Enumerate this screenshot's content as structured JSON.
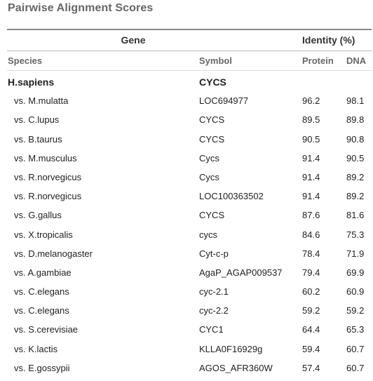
{
  "title": "Pairwise Alignment Scores",
  "header": {
    "gene": "Gene",
    "identity": "Identity (%)"
  },
  "columns": {
    "species": "Species",
    "symbol": "Symbol",
    "protein": "Protein",
    "dna": "DNA"
  },
  "reference": {
    "species": "H.sapiens",
    "symbol": "CYCS"
  },
  "rows": [
    {
      "species": "vs. M.mulatta",
      "symbol": "LOC694977",
      "protein": "96.2",
      "dna": "98.1"
    },
    {
      "species": "vs. C.lupus",
      "symbol": "CYCS",
      "protein": "89.5",
      "dna": "89.8"
    },
    {
      "species": "vs. B.taurus",
      "symbol": "CYCS",
      "protein": "90.5",
      "dna": "90.8"
    },
    {
      "species": "vs. M.musculus",
      "symbol": "Cycs",
      "protein": "91.4",
      "dna": "90.5"
    },
    {
      "species": "vs. R.norvegicus",
      "symbol": "Cycs",
      "protein": "91.4",
      "dna": "89.2"
    },
    {
      "species": "vs. R.norvegicus",
      "symbol": "LOC100363502",
      "protein": "91.4",
      "dna": "89.2"
    },
    {
      "species": "vs. G.gallus",
      "symbol": "CYCS",
      "protein": "87.6",
      "dna": "81.6"
    },
    {
      "species": "vs. X.tropicalis",
      "symbol": "cycs",
      "protein": "84.6",
      "dna": "75.3"
    },
    {
      "species": "vs. D.melanogaster",
      "symbol": "Cyt-c-p",
      "protein": "78.4",
      "dna": "71.9"
    },
    {
      "species": "vs. A.gambiae",
      "symbol": "AgaP_AGAP009537",
      "protein": "79.4",
      "dna": "69.9"
    },
    {
      "species": "vs. C.elegans",
      "symbol": "cyc-2.1",
      "protein": "60.2",
      "dna": "60.9"
    },
    {
      "species": "vs. C.elegans",
      "symbol": "cyc-2.2",
      "protein": "59.2",
      "dna": "59.2"
    },
    {
      "species": "vs. S.cerevisiae",
      "symbol": "CYC1",
      "protein": "64.4",
      "dna": "65.3"
    },
    {
      "species": "vs. K.lactis",
      "symbol": "KLLA0F16929g",
      "protein": "59.4",
      "dna": "60.7"
    },
    {
      "species": "vs. E.gossypii",
      "symbol": "AGOS_AFR360W",
      "protein": "57.4",
      "dna": "60.7"
    }
  ]
}
